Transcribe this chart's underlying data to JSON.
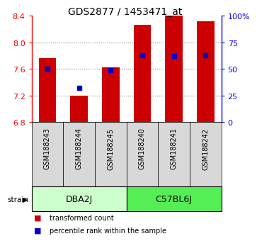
{
  "title": "GDS2877 / 1453471_at",
  "samples": [
    "GSM188243",
    "GSM188244",
    "GSM188245",
    "GSM188240",
    "GSM188241",
    "GSM188242"
  ],
  "group_dba_name": "DBA2J",
  "group_c57_name": "C57BL6J",
  "group_dba_color": "#ccffcc",
  "group_c57_color": "#55ee55",
  "transformed_counts": [
    7.76,
    7.2,
    7.63,
    8.27,
    8.4,
    8.32
  ],
  "percentile_ranks": [
    50,
    32,
    49,
    63,
    62,
    63
  ],
  "bar_color": "#cc0000",
  "dot_color": "#0000cc",
  "ylim": [
    6.8,
    8.4
  ],
  "y_ticks_left": [
    6.8,
    7.2,
    7.6,
    8.0,
    8.4
  ],
  "y_ticks_right": [
    0,
    25,
    50,
    75,
    100
  ],
  "y_ticks_right_labels": [
    "0",
    "25",
    "50",
    "75",
    "100%"
  ],
  "bar_width": 0.55,
  "base_value": 6.8,
  "legend_label_red": "transformed count",
  "legend_label_blue": "percentile rank within the sample"
}
